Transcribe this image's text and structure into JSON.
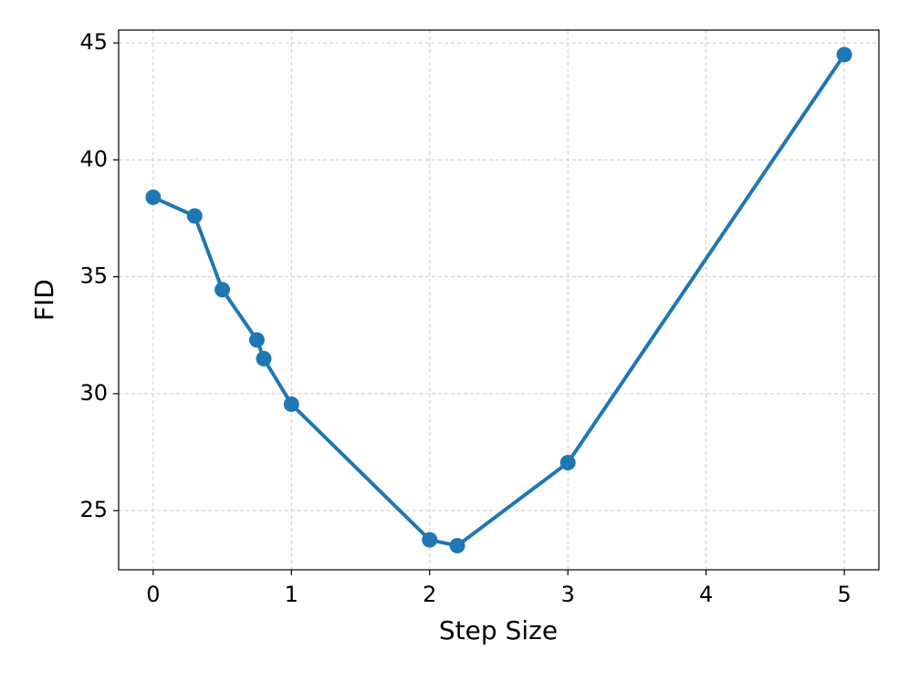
{
  "chart_data": {
    "type": "line",
    "xlabel": "Step Size",
    "ylabel": "FID",
    "x": [
      0,
      0.3,
      0.5,
      0.75,
      0.8,
      1,
      2,
      2.2,
      3,
      5
    ],
    "series": [
      {
        "color": "#1f77b4",
        "values": [
          38.4,
          37.6,
          34.45,
          32.3,
          31.5,
          29.55,
          23.75,
          23.5,
          27.05,
          44.5
        ]
      }
    ],
    "xlim": [
      -0.25,
      5.25
    ],
    "ylim": [
      22.47,
      45.55
    ],
    "xticks": [
      0,
      1,
      2,
      3,
      4,
      5
    ],
    "yticks": [
      25,
      30,
      35,
      40,
      45
    ],
    "grid": true
  }
}
